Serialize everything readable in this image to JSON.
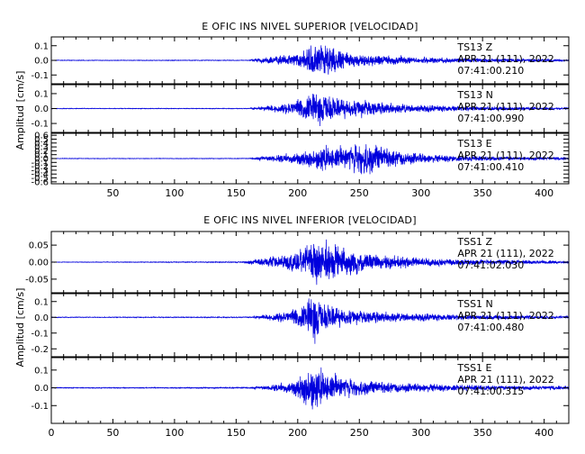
{
  "colors": {
    "trace": "#0000dd",
    "axis": "#000000",
    "background": "#ffffff"
  },
  "chart_data": [
    {
      "type": "line",
      "title": "E OFIC INS NIVEL SUPERIOR [VELOCIDAD]",
      "ylabel": "Amplitud [cm/s]",
      "xlabel": "",
      "xlim": [
        0,
        420
      ],
      "xticks": [
        50,
        100,
        150,
        200,
        250,
        300,
        350,
        400
      ],
      "grid": false,
      "series": [
        {
          "name": "TS13 Z",
          "station": "TS13",
          "component": "Z",
          "date": "APR 21 (111), 2022",
          "time": "07:41:00.210",
          "ylim": [
            -0.16,
            0.16
          ],
          "yticks": [
            "0.1",
            "0.0",
            "-0.1"
          ],
          "yvalues": [
            0.1,
            0.0,
            -0.1
          ],
          "onset": 160,
          "peak_time": 217,
          "peak_amp": 0.16,
          "noise": 0.003,
          "envelope": [
            [
              0,
              0.003
            ],
            [
              160,
              0.003
            ],
            [
              170,
              0.02
            ],
            [
              190,
              0.04
            ],
            [
              205,
              0.07
            ],
            [
              212,
              0.13
            ],
            [
              218,
              0.16
            ],
            [
              225,
              0.12
            ],
            [
              235,
              0.08
            ],
            [
              245,
              0.06
            ],
            [
              255,
              0.05
            ],
            [
              265,
              0.04
            ],
            [
              280,
              0.035
            ],
            [
              300,
              0.025
            ],
            [
              330,
              0.02
            ],
            [
              360,
              0.015
            ],
            [
              400,
              0.01
            ],
            [
              420,
              0.008
            ]
          ]
        },
        {
          "name": "TS13 N",
          "station": "TS13",
          "component": "N",
          "date": "APR 21 (111), 2022",
          "time": "07:41:00.990",
          "ylim": [
            -0.16,
            0.16
          ],
          "yticks": [
            "0.1",
            "0.0",
            "-0.1"
          ],
          "yvalues": [
            0.1,
            0.0,
            -0.1
          ],
          "onset": 160,
          "peak_time": 215,
          "peak_amp": 0.14,
          "noise": 0.003,
          "envelope": [
            [
              0,
              0.003
            ],
            [
              160,
              0.003
            ],
            [
              170,
              0.015
            ],
            [
              190,
              0.04
            ],
            [
              205,
              0.08
            ],
            [
              215,
              0.14
            ],
            [
              225,
              0.1
            ],
            [
              235,
              0.08
            ],
            [
              245,
              0.07
            ],
            [
              255,
              0.07
            ],
            [
              265,
              0.05
            ],
            [
              280,
              0.04
            ],
            [
              300,
              0.03
            ],
            [
              330,
              0.02
            ],
            [
              360,
              0.015
            ],
            [
              400,
              0.01
            ],
            [
              420,
              0.008
            ]
          ]
        },
        {
          "name": "TS13 E",
          "station": "TS13",
          "component": "E",
          "date": "APR 21 (111), 2022",
          "time": "07:41:00.410",
          "ylim": [
            -0.65,
            0.65
          ],
          "yticks": [
            "0.6",
            "0.5",
            "0.4",
            "0.3",
            "0.2",
            "0.1",
            "0.0",
            "-0.1",
            "-0.2",
            "-0.3",
            "-0.4",
            "-0.5",
            "-0.6"
          ],
          "yvalues": [
            0.6,
            0.5,
            0.4,
            0.3,
            0.2,
            0.1,
            0.0,
            -0.1,
            -0.2,
            -0.3,
            -0.4,
            -0.5,
            -0.6
          ],
          "onset": 160,
          "peak_time": 255,
          "peak_amp": 0.55,
          "noise": 0.01,
          "envelope": [
            [
              0,
              0.01
            ],
            [
              160,
              0.01
            ],
            [
              175,
              0.08
            ],
            [
              195,
              0.15
            ],
            [
              210,
              0.3
            ],
            [
              220,
              0.42
            ],
            [
              235,
              0.35
            ],
            [
              245,
              0.45
            ],
            [
              255,
              0.55
            ],
            [
              265,
              0.4
            ],
            [
              275,
              0.3
            ],
            [
              290,
              0.2
            ],
            [
              310,
              0.12
            ],
            [
              340,
              0.08
            ],
            [
              380,
              0.05
            ],
            [
              420,
              0.04
            ]
          ]
        }
      ]
    },
    {
      "type": "line",
      "title": "E OFIC INS NIVEL INFERIOR [VELOCIDAD]",
      "ylabel": "Amplitud [cm/s]",
      "xlabel": "",
      "xlim": [
        0,
        420
      ],
      "xticks": [
        0,
        50,
        100,
        150,
        200,
        250,
        300,
        350,
        400
      ],
      "grid": false,
      "series": [
        {
          "name": "TSS1 Z",
          "station": "TSS1",
          "component": "Z",
          "date": "APR 21 (111), 2022",
          "time": "07:41:02.030",
          "ylim": [
            -0.09,
            0.09
          ],
          "yticks": [
            "0.05",
            "0.00",
            "-0.05"
          ],
          "yvalues": [
            0.05,
            0.0,
            -0.05
          ],
          "onset": 155,
          "peak_time": 217,
          "peak_amp": 0.085,
          "noise": 0.001,
          "envelope": [
            [
              0,
              0.001
            ],
            [
              155,
              0.002
            ],
            [
              165,
              0.01
            ],
            [
              180,
              0.02
            ],
            [
              195,
              0.03
            ],
            [
              205,
              0.05
            ],
            [
              212,
              0.075
            ],
            [
              218,
              0.085
            ],
            [
              228,
              0.06
            ],
            [
              240,
              0.05
            ],
            [
              255,
              0.035
            ],
            [
              270,
              0.025
            ],
            [
              290,
              0.02
            ],
            [
              320,
              0.012
            ],
            [
              360,
              0.008
            ],
            [
              420,
              0.005
            ]
          ]
        },
        {
          "name": "TSS1 N",
          "station": "TSS1",
          "component": "N",
          "date": "APR 21 (111), 2022",
          "time": "07:41:00.480",
          "ylim": [
            -0.25,
            0.15
          ],
          "yticks": [
            "0.1",
            "0.0",
            "-0.1",
            "-0.2"
          ],
          "yvalues": [
            0.1,
            0.0,
            -0.1,
            -0.2
          ],
          "onset": 160,
          "peak_time": 213,
          "peak_amp": 0.2,
          "noise": 0.003,
          "envelope": [
            [
              0,
              0.003
            ],
            [
              160,
              0.004
            ],
            [
              175,
              0.02
            ],
            [
              195,
              0.05
            ],
            [
              205,
              0.09
            ],
            [
              213,
              0.2
            ],
            [
              220,
              0.1
            ],
            [
              235,
              0.07
            ],
            [
              250,
              0.05
            ],
            [
              270,
              0.04
            ],
            [
              300,
              0.03
            ],
            [
              330,
              0.02
            ],
            [
              370,
              0.015
            ],
            [
              420,
              0.01
            ]
          ]
        },
        {
          "name": "TSS1 E",
          "station": "TSS1",
          "component": "E",
          "date": "APR 21 (111), 2022",
          "time": "07:41:00.315",
          "ylim": [
            -0.2,
            0.17
          ],
          "yticks": [
            "0.1",
            "0.0",
            "-0.1"
          ],
          "yvalues": [
            0.1,
            0.0,
            -0.1
          ],
          "onset": 160,
          "peak_time": 210,
          "peak_amp": 0.18,
          "noise": 0.003,
          "envelope": [
            [
              0,
              0.003
            ],
            [
              160,
              0.004
            ],
            [
              175,
              0.015
            ],
            [
              195,
              0.04
            ],
            [
              205,
              0.12
            ],
            [
              210,
              0.18
            ],
            [
              220,
              0.13
            ],
            [
              230,
              0.09
            ],
            [
              245,
              0.06
            ],
            [
              260,
              0.045
            ],
            [
              280,
              0.035
            ],
            [
              300,
              0.028
            ],
            [
              330,
              0.02
            ],
            [
              370,
              0.015
            ],
            [
              420,
              0.012
            ]
          ]
        }
      ]
    }
  ]
}
